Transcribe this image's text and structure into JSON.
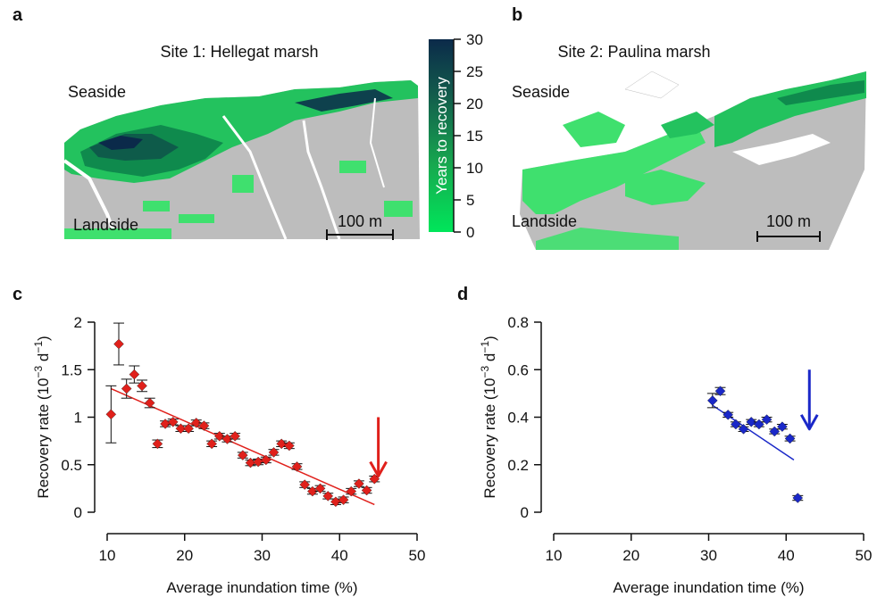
{
  "panels": {
    "a": {
      "letter": "a",
      "title": "Site 1: Hellegat marsh",
      "seaside": "Seaside",
      "landside": "Landside",
      "scalebar": "100 m"
    },
    "b": {
      "letter": "b",
      "title": "Site 2: Paulina marsh",
      "seaside": "Seaside",
      "landside": "Landside",
      "scalebar": "100 m"
    }
  },
  "colorbar": {
    "label": "Years to recovery",
    "ticks": [
      "0",
      "5",
      "10",
      "15",
      "20",
      "25",
      "30"
    ],
    "color_low": "#00e65a",
    "color_high": "#0b2a4a"
  },
  "map_colors": {
    "background": "#bdbdbd",
    "white": "#ffffff"
  },
  "chart_data": [
    {
      "type": "scatter",
      "panel": "c",
      "xlabel": "Average inundation time (%)",
      "ylabel_main": "Recovery rate (10",
      "ylabel_exp": "−3",
      "ylabel_mid": " d",
      "ylabel_exp2": "−1",
      "ylabel_end": ")",
      "xlim": [
        10,
        50
      ],
      "ylim": [
        0,
        2
      ],
      "xticks": [
        "10",
        "20",
        "30",
        "40",
        "50"
      ],
      "yticks": [
        "0",
        "0.5",
        "1",
        "1.5",
        "2"
      ],
      "color": "#e0201b",
      "points": [
        {
          "x": 10.5,
          "y": 1.03,
          "err": 0.3
        },
        {
          "x": 11.5,
          "y": 1.77,
          "err": 0.22
        },
        {
          "x": 12.5,
          "y": 1.3,
          "err": 0.1
        },
        {
          "x": 13.5,
          "y": 1.45,
          "err": 0.09
        },
        {
          "x": 14.5,
          "y": 1.33,
          "err": 0.06
        },
        {
          "x": 15.5,
          "y": 1.15,
          "err": 0.05
        },
        {
          "x": 16.5,
          "y": 0.72,
          "err": 0.04
        },
        {
          "x": 17.5,
          "y": 0.93,
          "err": 0.03
        },
        {
          "x": 18.5,
          "y": 0.95,
          "err": 0.03
        },
        {
          "x": 19.5,
          "y": 0.88,
          "err": 0.03
        },
        {
          "x": 20.5,
          "y": 0.88,
          "err": 0.03
        },
        {
          "x": 21.5,
          "y": 0.94,
          "err": 0.03
        },
        {
          "x": 22.5,
          "y": 0.91,
          "err": 0.03
        },
        {
          "x": 23.5,
          "y": 0.72,
          "err": 0.03
        },
        {
          "x": 24.5,
          "y": 0.8,
          "err": 0.03
        },
        {
          "x": 25.5,
          "y": 0.77,
          "err": 0.03
        },
        {
          "x": 26.5,
          "y": 0.8,
          "err": 0.03
        },
        {
          "x": 27.5,
          "y": 0.6,
          "err": 0.03
        },
        {
          "x": 28.5,
          "y": 0.52,
          "err": 0.03
        },
        {
          "x": 29.5,
          "y": 0.53,
          "err": 0.03
        },
        {
          "x": 30.5,
          "y": 0.55,
          "err": 0.03
        },
        {
          "x": 31.5,
          "y": 0.63,
          "err": 0.03
        },
        {
          "x": 32.5,
          "y": 0.72,
          "err": 0.03
        },
        {
          "x": 33.5,
          "y": 0.7,
          "err": 0.03
        },
        {
          "x": 34.5,
          "y": 0.48,
          "err": 0.03
        },
        {
          "x": 35.5,
          "y": 0.29,
          "err": 0.03
        },
        {
          "x": 36.5,
          "y": 0.22,
          "err": 0.03
        },
        {
          "x": 37.5,
          "y": 0.25,
          "err": 0.03
        },
        {
          "x": 38.5,
          "y": 0.17,
          "err": 0.03
        },
        {
          "x": 39.5,
          "y": 0.11,
          "err": 0.03
        },
        {
          "x": 40.5,
          "y": 0.13,
          "err": 0.03
        },
        {
          "x": 41.5,
          "y": 0.22,
          "err": 0.03
        },
        {
          "x": 42.5,
          "y": 0.3,
          "err": 0.03
        },
        {
          "x": 43.5,
          "y": 0.23,
          "err": 0.03
        },
        {
          "x": 44.5,
          "y": 0.35,
          "err": 0.03
        }
      ],
      "fit": {
        "x0": 10.5,
        "y0": 1.3,
        "x1": 44.5,
        "y1": 0.08
      },
      "arrow": {
        "x": 45.0,
        "y_top": 1.0,
        "y_bottom": 0.38
      }
    },
    {
      "type": "scatter",
      "panel": "d",
      "xlabel": "Average inundation time (%)",
      "ylabel_main": "Recovery rate (10",
      "ylabel_exp": "−3",
      "ylabel_mid": " d",
      "ylabel_exp2": "−1",
      "ylabel_end": ")",
      "xlim": [
        10,
        50
      ],
      "ylim": [
        0,
        0.8
      ],
      "xticks": [
        "10",
        "20",
        "30",
        "40",
        "50"
      ],
      "yticks": [
        "0",
        "0.2",
        "0.4",
        "0.6",
        "0.8"
      ],
      "color": "#1a28c8",
      "points": [
        {
          "x": 30.5,
          "y": 0.47,
          "err": 0.03
        },
        {
          "x": 31.5,
          "y": 0.51,
          "err": 0.015
        },
        {
          "x": 32.5,
          "y": 0.41,
          "err": 0.01
        },
        {
          "x": 33.5,
          "y": 0.37,
          "err": 0.01
        },
        {
          "x": 34.5,
          "y": 0.35,
          "err": 0.01
        },
        {
          "x": 35.5,
          "y": 0.38,
          "err": 0.01
        },
        {
          "x": 36.5,
          "y": 0.37,
          "err": 0.01
        },
        {
          "x": 37.5,
          "y": 0.39,
          "err": 0.01
        },
        {
          "x": 38.5,
          "y": 0.34,
          "err": 0.01
        },
        {
          "x": 39.5,
          "y": 0.36,
          "err": 0.01
        },
        {
          "x": 40.5,
          "y": 0.31,
          "err": 0.01
        },
        {
          "x": 41.5,
          "y": 0.06,
          "err": 0.01
        }
      ],
      "fit": {
        "x0": 30.5,
        "y0": 0.45,
        "x1": 41.0,
        "y1": 0.22
      },
      "arrow": {
        "x": 43.0,
        "y_top": 0.6,
        "y_bottom": 0.35
      }
    }
  ]
}
